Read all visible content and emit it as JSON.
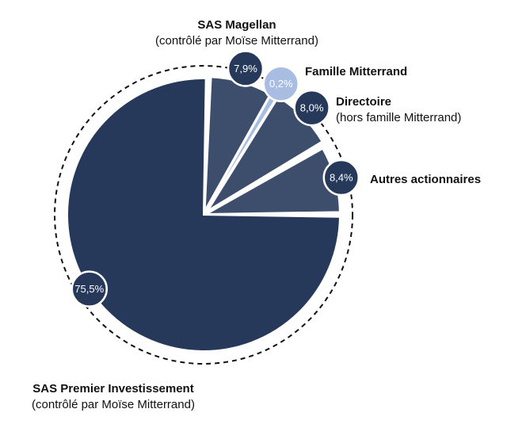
{
  "chart_data": {
    "type": "pie",
    "slices": [
      {
        "name": "SAS Premier Investissement",
        "sublabel": "(contrôlé par Moïse Mitterrand)",
        "value": 75.5,
        "value_label": "75,5%",
        "color": "#27395a",
        "badge_color": "#27395a",
        "badge_text_color": "#ffffff"
      },
      {
        "name": "SAS Magellan",
        "sublabel": "(contrôlé par Moïse Mitterrand)",
        "value": 7.9,
        "value_label": "7,9%",
        "color": "#3d4d6c",
        "badge_color": "#27395a",
        "badge_text_color": "#ffffff"
      },
      {
        "name": "Famille Mitterrand",
        "sublabel": "",
        "value": 0.2,
        "value_label": "0,2%",
        "color": "#a9bde2",
        "badge_color": "#a9bde2",
        "badge_text_color": "#ffffff"
      },
      {
        "name": "Directoire",
        "sublabel": "(hors famille Mitterrand)",
        "value": 8.0,
        "value_label": "8,0%",
        "color": "#3d4d6c",
        "badge_color": "#27395a",
        "badge_text_color": "#ffffff"
      },
      {
        "name": "Autres actionnaires",
        "sublabel": "",
        "value": 8.4,
        "value_label": "8,4%",
        "color": "#3d4d6c",
        "badge_color": "#27395a",
        "badge_text_color": "#ffffff"
      }
    ],
    "dashed_outline": true,
    "outline_color": "#111111"
  }
}
